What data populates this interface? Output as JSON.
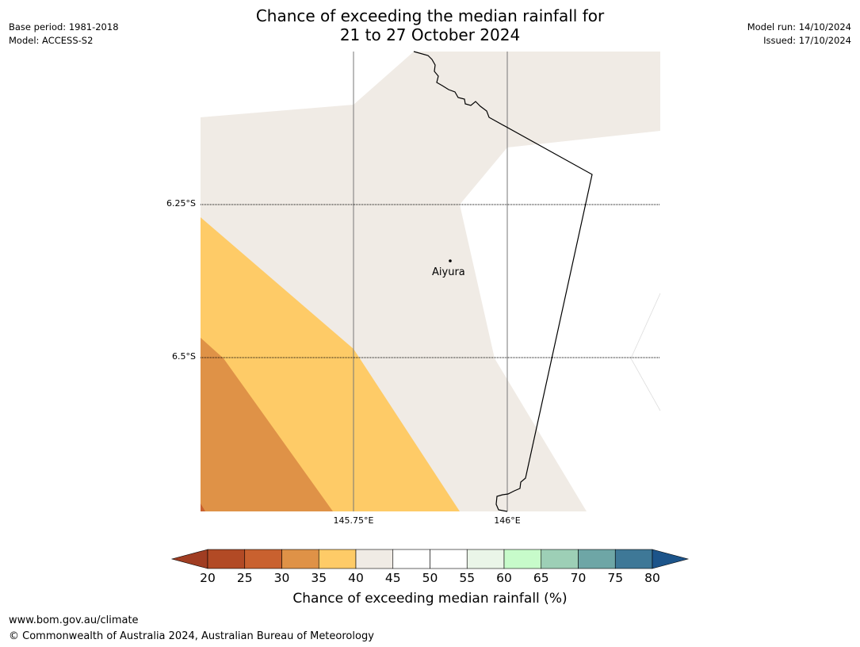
{
  "title_line1": "Chance of exceeding the median rainfall for",
  "title_line2": "21 to 27 October 2024",
  "meta_left": {
    "base_period": "Base period: 1981-2018",
    "model": "Model: ACCESS-S2"
  },
  "meta_right": {
    "model_run": "Model run: 14/10/2024",
    "issued": "Issued: 17/10/2024"
  },
  "map": {
    "lat_labels": [
      "6.25°S",
      "6.5°S"
    ],
    "lon_labels": [
      "145.75°E",
      "146°E"
    ],
    "town": "Aiyura"
  },
  "colorbar": {
    "ticks": [
      "20",
      "25",
      "30",
      "35",
      "40",
      "45",
      "50",
      "55",
      "60",
      "65",
      "70",
      "75",
      "80"
    ],
    "label": "Chance of exceeding median rainfall (%)",
    "colors": [
      "#a03d22",
      "#b24a25",
      "#c9612f",
      "#df9247",
      "#fecb67",
      "#f0ebe5",
      "#ffffff",
      "#ffffff",
      "#eaf5e8",
      "#c7fbca",
      "#9dcfb6",
      "#6ea6a6",
      "#3e7897",
      "#1c548a"
    ]
  },
  "footer": {
    "url": "www.bom.gov.au/climate",
    "copyright": "© Commonwealth of Australia 2024, Australian Bureau of Meteorology"
  }
}
